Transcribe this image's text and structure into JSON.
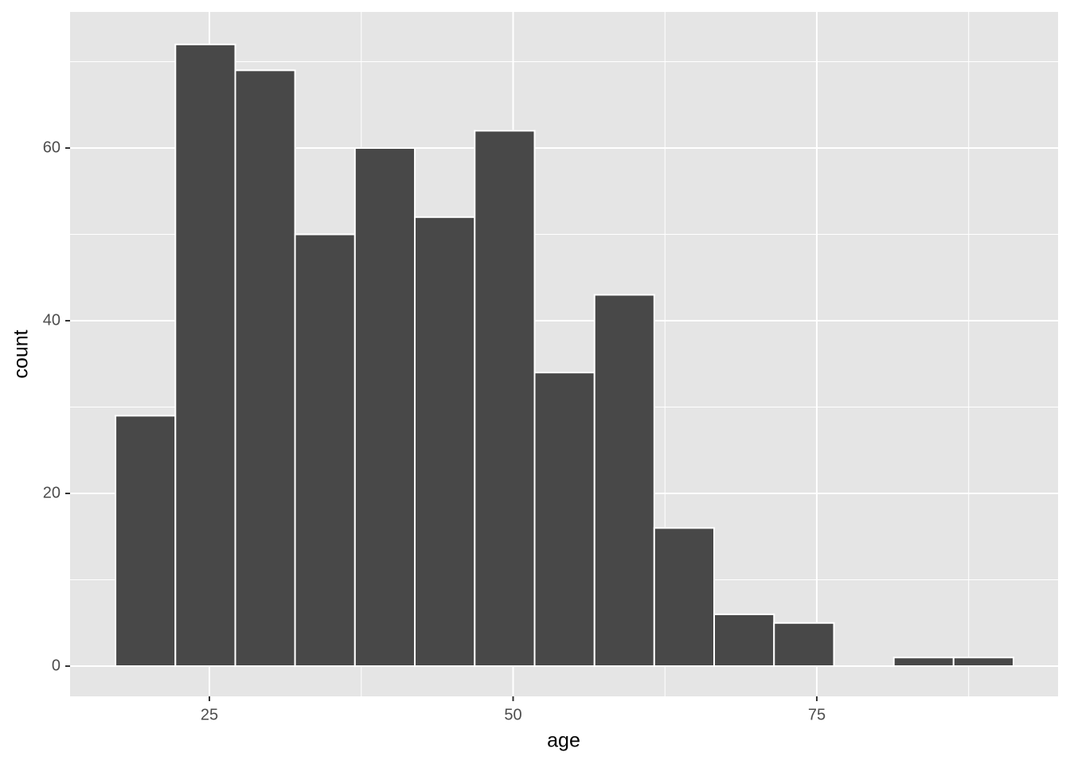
{
  "chart_data": {
    "type": "histogram",
    "x_label": "age",
    "y_label": "count",
    "bins": [
      17.27,
      22.2,
      27.13,
      32.05,
      36.98,
      41.91,
      46.84,
      51.77,
      56.7,
      61.62,
      66.55,
      71.48,
      76.41,
      81.34,
      86.26,
      91.19
    ],
    "values": [
      29,
      72,
      69,
      50,
      60,
      52,
      62,
      34,
      43,
      16,
      6,
      5,
      0,
      1,
      1
    ],
    "color": "#484848",
    "edge_color": "#ffffff",
    "xlim": [
      13.53,
      94.86
    ],
    "ylim": [
      -3.5,
      75.76
    ],
    "xticks": [
      25,
      50,
      75
    ],
    "yticks": [
      0,
      20,
      40,
      60
    ],
    "minor_xticks": [
      37.5,
      62.5,
      87.5
    ],
    "minor_yticks": [
      10,
      30,
      50,
      70
    ],
    "grid": true,
    "panel_color": "#e5e5e5"
  }
}
